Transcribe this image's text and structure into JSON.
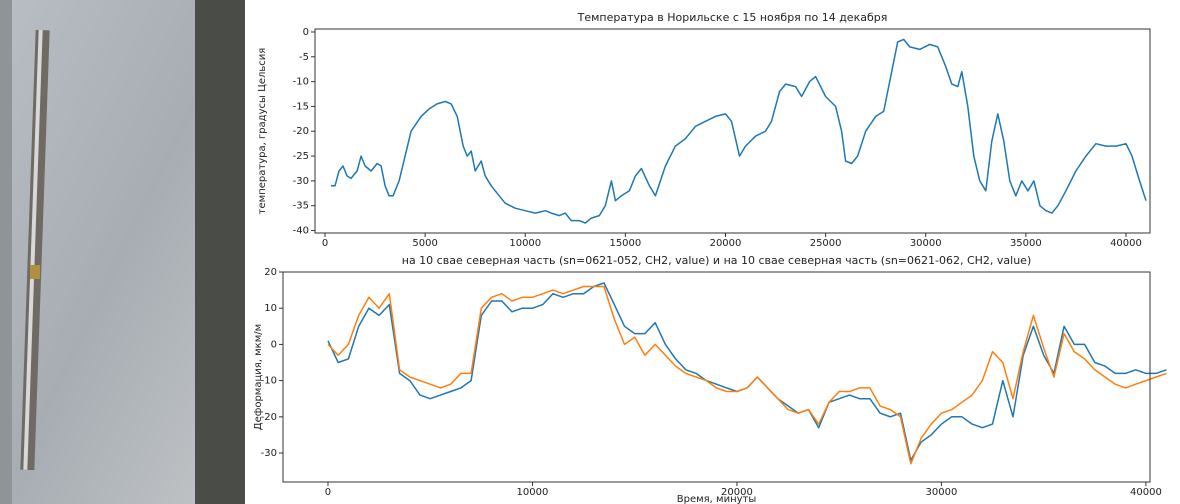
{
  "chart_data": [
    {
      "type": "line",
      "title": "Температура в Норильске с 15 ноября по 14 декабря",
      "y_label": "температура, градусы Цельсия",
      "xlim": [
        -500,
        41200
      ],
      "ylim": [
        -40.5,
        0.6
      ],
      "xticks": [
        0,
        5000,
        10000,
        15000,
        20000,
        25000,
        30000,
        35000,
        40000
      ],
      "yticks": [
        0,
        -5,
        -10,
        -15,
        -20,
        -25,
        -30,
        -35,
        -40
      ],
      "x": [
        300,
        500,
        700,
        900,
        1100,
        1300,
        1600,
        1800,
        2000,
        2300,
        2600,
        2800,
        3000,
        3200,
        3400,
        3700,
        4000,
        4300,
        4800,
        5200,
        5600,
        6000,
        6300,
        6600,
        6900,
        7100,
        7300,
        7500,
        7800,
        8000,
        8300,
        8700,
        9000,
        9500,
        10000,
        10500,
        11000,
        11300,
        11700,
        12000,
        12300,
        12700,
        13000,
        13300,
        13700,
        14000,
        14300,
        14500,
        14800,
        15200,
        15500,
        15800,
        16200,
        16500,
        17000,
        17500,
        18000,
        18500,
        19000,
        19500,
        20000,
        20300,
        20700,
        21000,
        21500,
        22000,
        22300,
        22700,
        23000,
        23500,
        23800,
        24200,
        24500,
        25000,
        25500,
        25800,
        26000,
        26300,
        26600,
        27000,
        27500,
        27900,
        28300,
        28600,
        28900,
        29200,
        29700,
        30200,
        30600,
        31000,
        31300,
        31600,
        31800,
        32100,
        32400,
        32700,
        33000,
        33300,
        33600,
        33900,
        34200,
        34500,
        34800,
        35100,
        35400,
        35700,
        36000,
        36300,
        36600,
        37000,
        37500,
        38000,
        38500,
        39000,
        39500,
        40000,
        40300,
        40600,
        41000
      ],
      "series": [
        {
          "color": "#1f77b4",
          "values": [
            -31,
            -31,
            -28,
            -27,
            -29,
            -29.5,
            -28,
            -25,
            -27,
            -28,
            -26.5,
            -27,
            -31,
            -33,
            -33,
            -30,
            -25,
            -20,
            -17,
            -15.5,
            -14.5,
            -14,
            -14.5,
            -17,
            -23,
            -25,
            -24,
            -28,
            -26,
            -29,
            -31,
            -33,
            -34.5,
            -35.5,
            -36,
            -36.5,
            -36,
            -36.5,
            -37,
            -36.5,
            -38,
            -38,
            -38.5,
            -37.5,
            -37,
            -35,
            -30,
            -34,
            -33,
            -32,
            -29,
            -27.5,
            -31,
            -33,
            -27,
            -23,
            -21.5,
            -19,
            -18,
            -17,
            -16.5,
            -18,
            -25,
            -23,
            -21,
            -20,
            -18,
            -12,
            -10.5,
            -11,
            -13,
            -10,
            -9,
            -13,
            -15,
            -20,
            -26,
            -26.5,
            -25,
            -20,
            -17,
            -16,
            -8,
            -2,
            -1.5,
            -3,
            -3.5,
            -2.5,
            -3,
            -7,
            -10.5,
            -11,
            -8,
            -15,
            -25,
            -30,
            -32,
            -22,
            -16.5,
            -22,
            -30,
            -33,
            -30,
            -32,
            -30,
            -35,
            -36,
            -36.5,
            -35,
            -32,
            -28,
            -25,
            -22.5,
            -23,
            -23,
            -22.5,
            -25,
            -29,
            -34
          ]
        }
      ]
    },
    {
      "type": "line",
      "title": "на 10 свае северная часть (sn=0621-052, CH2, value) и на 10 свае северная часть (sn=0621-062, CH2, value)",
      "x_label": "Время, минуты",
      "y_label": "Деформация, мкм/м",
      "xlim": [
        -2200,
        40200
      ],
      "ylim": [
        -38,
        20
      ],
      "xticks": [
        0,
        10000,
        20000,
        30000,
        40000
      ],
      "yticks": [
        20,
        10,
        0,
        -10,
        -20,
        -30
      ],
      "x": [
        0,
        500,
        1000,
        1500,
        2000,
        2500,
        3000,
        3500,
        4000,
        4500,
        5000,
        5500,
        6000,
        6500,
        7000,
        7500,
        8000,
        8500,
        9000,
        9500,
        10000,
        10500,
        11000,
        11500,
        12000,
        12500,
        13000,
        13500,
        14000,
        14500,
        15000,
        15500,
        16000,
        16500,
        17000,
        17500,
        18000,
        18500,
        19000,
        19500,
        20000,
        20500,
        21000,
        21500,
        22000,
        22500,
        23000,
        23500,
        24000,
        24500,
        25000,
        25500,
        26000,
        26500,
        27000,
        27500,
        28000,
        28500,
        29000,
        29500,
        30000,
        30500,
        31000,
        31500,
        32000,
        32500,
        33000,
        33500,
        34000,
        34500,
        35000,
        35500,
        36000,
        36500,
        37000,
        37500,
        38000,
        38500,
        39000,
        39500,
        40000,
        40500,
        41000
      ],
      "series": [
        {
          "color": "#1f77b4",
          "values": [
            1,
            -5,
            -4,
            5,
            10,
            8,
            11,
            -8,
            -10,
            -14,
            -15,
            -14,
            -13,
            -12,
            -10,
            8,
            12,
            12,
            9,
            10,
            10,
            11,
            14,
            13,
            14,
            14,
            16,
            17,
            11,
            5,
            3,
            3,
            6,
            0,
            -4,
            -7,
            -8,
            -10,
            -11,
            -12,
            -13,
            -12,
            -9,
            -12,
            -15,
            -17,
            -19,
            -18,
            -23,
            -16,
            -15,
            -14,
            -15,
            -15,
            -19,
            -20,
            -19,
            -32,
            -27,
            -25,
            -22,
            -20,
            -20,
            -22,
            -23,
            -22,
            -10,
            -20,
            -3,
            5,
            -3,
            -8,
            5,
            0,
            0,
            -5,
            -6,
            -8,
            -8,
            -7,
            -8,
            -8,
            -7
          ]
        },
        {
          "color": "#ff7f0e",
          "values": [
            0,
            -3,
            0,
            8,
            13,
            10,
            14,
            -7,
            -9,
            -10,
            -11,
            -12,
            -11,
            -8,
            -8,
            10,
            13,
            14,
            12,
            13,
            13,
            14,
            15,
            14,
            15,
            16,
            16,
            16,
            7,
            0,
            2,
            -3,
            0,
            -3,
            -6,
            -8,
            -9,
            -10,
            -12,
            -13,
            -13,
            -12,
            -9,
            -12,
            -15,
            -18,
            -19,
            -18,
            -22,
            -16,
            -13,
            -13,
            -12,
            -12,
            -17,
            -18,
            -20,
            -33,
            -26,
            -22,
            -19,
            -18,
            -16,
            -14,
            -10,
            -2,
            -5,
            -15,
            -2,
            8,
            -1,
            -9,
            3,
            -2,
            -4,
            -7,
            -9,
            -11,
            -12,
            -11,
            -10,
            -9,
            -8
          ]
        }
      ]
    }
  ]
}
